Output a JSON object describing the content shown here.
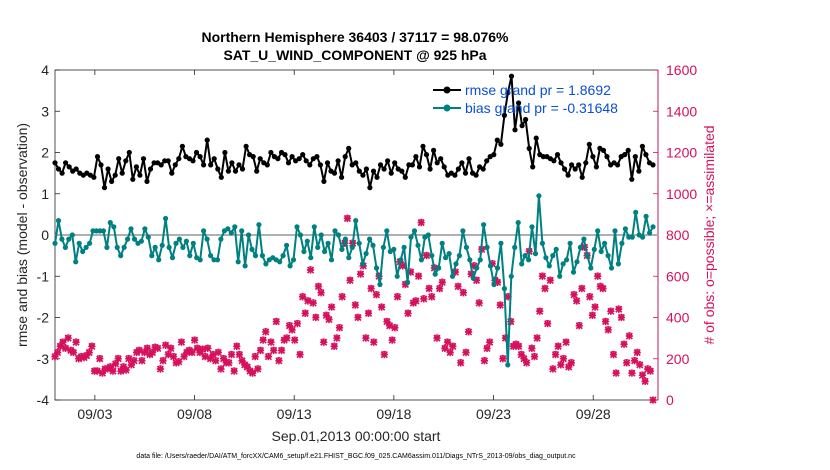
{
  "chart_data": {
    "type": "line",
    "title": "Northern Hemisphere 36403 / 37117 = 98.076%",
    "subtitle": "SAT_U_WIND_COMPONENT @ 925 hPa",
    "xlabel": "Sep.01,2013 00:00:00 start",
    "ylabel": "rmse and bias (model - observation)",
    "y2label": "# of obs: o=possible; ×=assimilated",
    "xlim": [
      1.0,
      31.25
    ],
    "ylim": [
      -4,
      4
    ],
    "y2lim": [
      0,
      1600
    ],
    "xticks": [
      3,
      8,
      13,
      18,
      23,
      28
    ],
    "xticklabels": [
      "09/03",
      "09/08",
      "09/13",
      "09/18",
      "09/23",
      "09/28"
    ],
    "yticks": [
      -4,
      -3,
      -2,
      -1,
      0,
      1,
      2,
      3,
      4
    ],
    "yticklabels": [
      "-4",
      "-3",
      "-2",
      "-1",
      "0",
      "1",
      "2",
      "3",
      "4"
    ],
    "y2ticks": [
      0,
      200,
      400,
      600,
      800,
      1000,
      1200,
      1400,
      1600
    ],
    "y2ticklabels": [
      "0",
      "200",
      "400",
      "600",
      "800",
      "1000",
      "1200",
      "1400",
      "1600"
    ],
    "zero_line": 0,
    "legend_position": "top-right",
    "footnote": "data file: /Users/raeder/DAI/ATM_forcXX/CAM6_setup/f.e21.FHIST_BGC.f09_025.CAM6assim.011/Diags_NTrS_2013-09/obs_diag_output.nc",
    "colors": {
      "rmse": "#000000",
      "bias": "#008080",
      "obs": "#d6105c",
      "zero": "#b0b0b0"
    },
    "series": [
      {
        "name": "rmse grand pr = 1.8692",
        "axis": "left",
        "color": "#000000",
        "y": [
          1.75,
          1.6,
          1.5,
          1.75,
          1.65,
          1.55,
          1.6,
          1.5,
          1.45,
          1.5,
          1.45,
          1.4,
          1.9,
          1.7,
          1.15,
          1.6,
          1.3,
          1.45,
          1.85,
          1.5,
          1.8,
          2.0,
          1.35,
          1.65,
          1.45,
          1.85,
          1.3,
          1.6,
          1.75,
          1.75,
          1.7,
          1.8,
          1.8,
          1.5,
          1.7,
          1.85,
          2.15,
          1.9,
          1.85,
          1.8,
          2.0,
          1.9,
          1.7,
          2.3,
          1.7,
          1.85,
          1.6,
          1.4,
          2.0,
          1.55,
          1.75,
          1.55,
          1.7,
          1.6,
          2.15,
          1.95,
          1.9,
          1.55,
          1.85,
          1.75,
          1.7,
          2.0,
          1.9,
          1.85,
          2.0,
          1.95,
          1.75,
          1.9,
          1.8,
          1.85,
          1.95,
          1.8,
          1.7,
          1.85,
          1.9,
          1.7,
          1.3,
          1.75,
          1.55,
          1.5,
          1.8,
          1.4,
          1.9,
          2.1,
          1.7,
          1.75,
          1.55,
          1.45,
          1.6,
          1.15,
          1.55,
          1.4,
          1.7,
          1.6,
          1.8,
          1.5,
          1.75,
          1.6,
          1.55,
          1.4,
          1.7,
          1.7,
          1.9,
          1.65,
          2.15,
          1.95,
          1.6,
          2.05,
          1.75,
          1.85,
          1.65,
          1.45,
          1.5,
          1.45,
          1.6,
          1.75,
          1.5,
          1.85,
          1.5,
          1.45,
          1.65,
          1.6,
          1.8,
          1.9,
          1.95,
          2.3,
          2.2,
          2.9,
          3.45,
          3.85,
          2.55,
          3.2,
          2.65,
          2.8,
          2.1,
          1.65,
          2.35,
          1.95,
          1.9,
          1.9,
          1.85,
          1.8,
          1.95,
          1.75,
          1.6,
          1.45,
          1.7,
          1.6,
          1.7,
          1.4,
          1.75,
          2.2,
          1.9,
          1.65,
          2.1,
          2.05,
          1.9,
          1.7,
          1.75,
          1.7,
          1.9,
          1.95,
          2.05,
          1.35,
          1.9,
          1.55,
          2.15,
          1.95,
          1.75,
          1.7
        ]
      },
      {
        "name": "bias grand pr = -0.31648",
        "axis": "left",
        "color": "#008080",
        "y": [
          -0.2,
          0.35,
          -0.1,
          -0.3,
          -0.1,
          0.0,
          -0.65,
          -0.2,
          -0.4,
          -0.3,
          -0.2,
          0.1,
          0.1,
          0.1,
          0.1,
          -0.3,
          0.3,
          0.2,
          -0.3,
          -0.5,
          -0.3,
          -0.1,
          0.15,
          -0.1,
          -0.2,
          -0.15,
          0.15,
          -0.05,
          -0.5,
          -0.3,
          -0.6,
          -0.25,
          0.4,
          -0.3,
          -0.55,
          -0.2,
          -0.1,
          -0.3,
          -0.15,
          -0.5,
          -0.2,
          -0.55,
          -0.6,
          0.1,
          -0.1,
          -0.5,
          -0.6,
          -0.6,
          -0.1,
          0.1,
          0.15,
          0.05,
          0.2,
          -0.65,
          0.1,
          -0.75,
          0.0,
          -0.35,
          -0.5,
          0.25,
          -0.5,
          -0.7,
          -0.6,
          -0.55,
          -0.6,
          -0.65,
          -0.5,
          -0.25,
          -0.75,
          -0.6,
          0.2,
          0.0,
          -0.4,
          -0.15,
          -0.55,
          0.2,
          -0.3,
          0.0,
          -0.4,
          -0.2,
          -0.6,
          0.1,
          0.0,
          -0.35,
          -0.1,
          -0.55,
          -0.3,
          0.35,
          -0.2,
          -0.7,
          -0.45,
          -0.1,
          -0.25,
          -0.8,
          -1.2,
          -0.3,
          0.1,
          -0.4,
          -0.35,
          -1.0,
          -0.6,
          -0.3,
          -1.15,
          -0.05,
          0.1,
          -0.25,
          -0.6,
          -0.05,
          0.0,
          -0.5,
          -0.95,
          -0.8,
          -0.2,
          -0.55,
          -0.45,
          -1.0,
          -0.7,
          -0.5,
          0.1,
          -0.3,
          -0.6,
          -1.05,
          -0.8,
          -0.6,
          0.25,
          -0.3,
          -0.75,
          -1.2,
          -0.8,
          -0.2,
          -1.3,
          -3.15,
          -1.0,
          -0.3,
          0.3,
          -0.7,
          -0.5,
          -0.6,
          0.2,
          -0.45,
          0.95,
          -0.2,
          -0.55,
          -0.75,
          -0.5,
          -0.35,
          -1.0,
          -0.7,
          -0.6,
          -0.2,
          -0.9,
          -0.65,
          -0.3,
          -0.1,
          -0.5,
          -0.8,
          -0.35,
          0.1,
          -0.4,
          -0.2,
          -0.5,
          -0.8,
          0.1,
          -0.7,
          -0.2,
          0.15,
          -0.05,
          -0.05,
          0.55,
          0.0,
          -0.05,
          0.45,
          0.05,
          0.2
        ]
      },
      {
        "name": "# of obs assimilated",
        "axis": "right",
        "color": "#d6105c",
        "marker": "x",
        "y": [
          210,
          230,
          260,
          280,
          250,
          300,
          240,
          230,
          280,
          200,
          210,
          205,
          215,
          230,
          260,
          140,
          140,
          200,
          130,
          150,
          150,
          160,
          140,
          175,
          200,
          140,
          160,
          145,
          200,
          170,
          190,
          230,
          240,
          190,
          230,
          250,
          220,
          230,
          255,
          250,
          150,
          190,
          265,
          220,
          250,
          210,
          180,
          185,
          280,
          210,
          230,
          240,
          230,
          290,
          250,
          230,
          245,
          210,
          250,
          200,
          220,
          190,
          230,
          150,
          200,
          180,
          180,
          220,
          140,
          260,
          220,
          190,
          170,
          160,
          140,
          130,
          210,
          150,
          240,
          290,
          330,
          210,
          280,
          240,
          380,
          190,
          240,
          290,
          300,
          360,
          340,
          290,
          370,
          220,
          500,
          420,
          480,
          630,
          470,
          400,
          550,
          520,
          280,
          410,
          390,
          450,
          260,
          300,
          350,
          500,
          760,
          880,
          580,
          760,
          460,
          400,
          610,
          650,
          300,
          420,
          540,
          280,
          510,
          600,
          450,
          220,
          380,
          360,
          290,
          350,
          500,
          670,
          650,
          560,
          420,
          620,
          470,
          480,
          600,
          860,
          490,
          700,
          540,
          500,
          640,
          300,
          540,
          570,
          250,
          280,
          230,
          260,
          620,
          550,
          180,
          520,
          230,
          330,
          610,
          650,
          580,
          470,
          730,
          190,
          250,
          280,
          660,
          580,
          570,
          460,
          200,
          300,
          500,
          380,
          260,
          270,
          260,
          220,
          200,
          180,
          720,
          250,
          210,
          300,
          430,
          600,
          540,
          370,
          580,
          150,
          220,
          260,
          170,
          200,
          280,
          160,
          180,
          510,
          480,
          360,
          540,
          740,
          700,
          500,
          410,
          450,
          600,
          550,
          540,
          380,
          340,
          430,
          220,
          130,
          440,
          400,
          270,
          180,
          310,
          130,
          190,
          230,
          170,
          120,
          90,
          150,
          140,
          0
        ]
      },
      {
        "name": "# of obs possible",
        "axis": "right",
        "color": "#d6105c",
        "marker": "o",
        "y": [
          215,
          235,
          265,
          285,
          255,
          305,
          245,
          235,
          285,
          205,
          215,
          210,
          220,
          235,
          265,
          145,
          145,
          205,
          135,
          155,
          155,
          165,
          145,
          180,
          205,
          145,
          165,
          150,
          205,
          175,
          195,
          235,
          245,
          195,
          235,
          255,
          225,
          235,
          260,
          255,
          155,
          195,
          270,
          225,
          255,
          215,
          185,
          190,
          285,
          215,
          235,
          245,
          235,
          295,
          255,
          235,
          250,
          215,
          255,
          205,
          225,
          195,
          235,
          155,
          205,
          185,
          185,
          225,
          145,
          265,
          225,
          195,
          175,
          165,
          145,
          135,
          215,
          155,
          245,
          295,
          335,
          215,
          285,
          245,
          385,
          195,
          245,
          295,
          305,
          365,
          345,
          295,
          375,
          225,
          505,
          425,
          485,
          635,
          475,
          405,
          555,
          525,
          285,
          415,
          395,
          455,
          265,
          305,
          355,
          505,
          765,
          885,
          585,
          765,
          465,
          405,
          615,
          655,
          305,
          425,
          545,
          285,
          515,
          605,
          455,
          225,
          385,
          365,
          295,
          355,
          505,
          675,
          655,
          565,
          425,
          625,
          475,
          485,
          605,
          865,
          495,
          705,
          545,
          505,
          645,
          305,
          545,
          575,
          255,
          285,
          235,
          265,
          625,
          555,
          185,
          525,
          235,
          335,
          615,
          655,
          585,
          475,
          735,
          195,
          255,
          285,
          665,
          585,
          575,
          465,
          205,
          305,
          505,
          385,
          265,
          275,
          265,
          225,
          205,
          185,
          725,
          255,
          215,
          305,
          435,
          605,
          545,
          375,
          585,
          155,
          225,
          265,
          175,
          205,
          285,
          165,
          185,
          515,
          485,
          365,
          545,
          745,
          705,
          505,
          415,
          455,
          605,
          555,
          545,
          385,
          345,
          435,
          225,
          135,
          445,
          405,
          275,
          185,
          315,
          135,
          195,
          235,
          175,
          125,
          95,
          155,
          145,
          0
        ]
      }
    ]
  }
}
